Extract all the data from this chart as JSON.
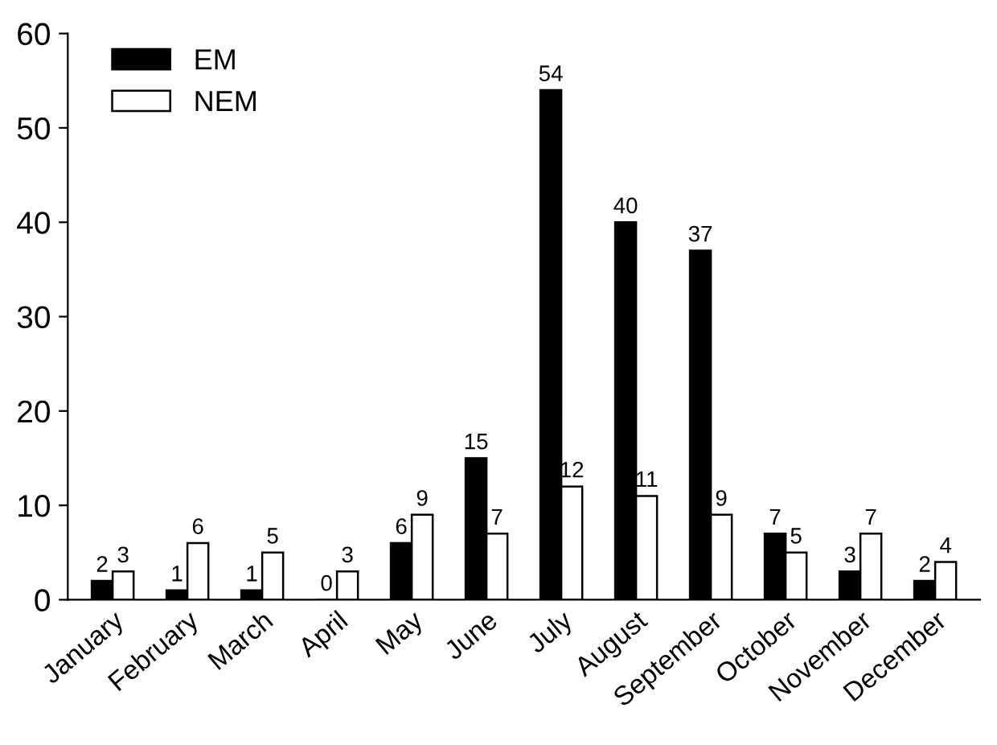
{
  "chart_data": {
    "type": "bar",
    "categories": [
      "January",
      "February",
      "March",
      "April",
      "May",
      "June",
      "July",
      "August",
      "September",
      "October",
      "November",
      "December"
    ],
    "series": [
      {
        "name": "EM",
        "color": "#000000",
        "values": [
          2,
          1,
          1,
          0,
          6,
          15,
          54,
          40,
          37,
          7,
          3,
          2
        ]
      },
      {
        "name": "NEM",
        "color": "#ffffff",
        "values": [
          3,
          6,
          5,
          3,
          9,
          7,
          12,
          11,
          9,
          5,
          7,
          4
        ]
      }
    ],
    "ylim": [
      0,
      60
    ],
    "yticks": [
      0,
      10,
      20,
      30,
      40,
      50,
      60
    ],
    "grid": false,
    "legend": "top left",
    "data_labels": true
  }
}
